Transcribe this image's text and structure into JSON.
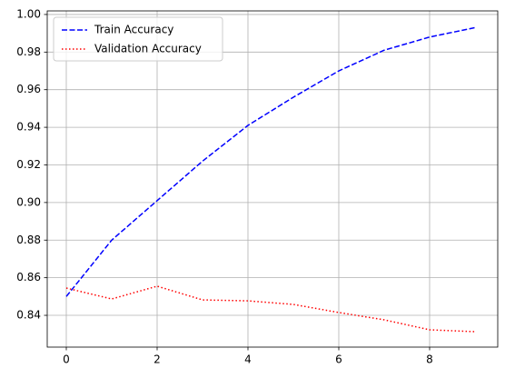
{
  "chart_data": {
    "type": "line",
    "x": [
      0,
      1,
      2,
      3,
      4,
      5,
      6,
      7,
      8,
      9
    ],
    "series": [
      {
        "name": "Train Accuracy",
        "color": "#0000ff",
        "linestyle": "--",
        "values": [
          0.85,
          0.88,
          0.901,
          0.922,
          0.941,
          0.956,
          0.97,
          0.981,
          0.988,
          0.993
        ]
      },
      {
        "name": "Validation Accuracy",
        "color": "#ff0000",
        "linestyle": ":",
        "values": [
          0.8545,
          0.8487,
          0.8555,
          0.8482,
          0.8477,
          0.8458,
          0.8415,
          0.8376,
          0.8323,
          0.8313
        ]
      }
    ],
    "xlim": [
      -0.42,
      9.5
    ],
    "xticks": [
      0,
      2,
      4,
      6,
      8
    ],
    "ylim": [
      0.8231,
      1.0019
    ],
    "yticks": [
      0.84,
      0.86,
      0.88,
      {
        "value": 0.9,
        "label": "0.90"
      },
      0.92,
      0.94,
      0.96,
      0.98,
      {
        "value": 1,
        "label": "1.00"
      }
    ],
    "grid": true,
    "legend": "upper left"
  }
}
